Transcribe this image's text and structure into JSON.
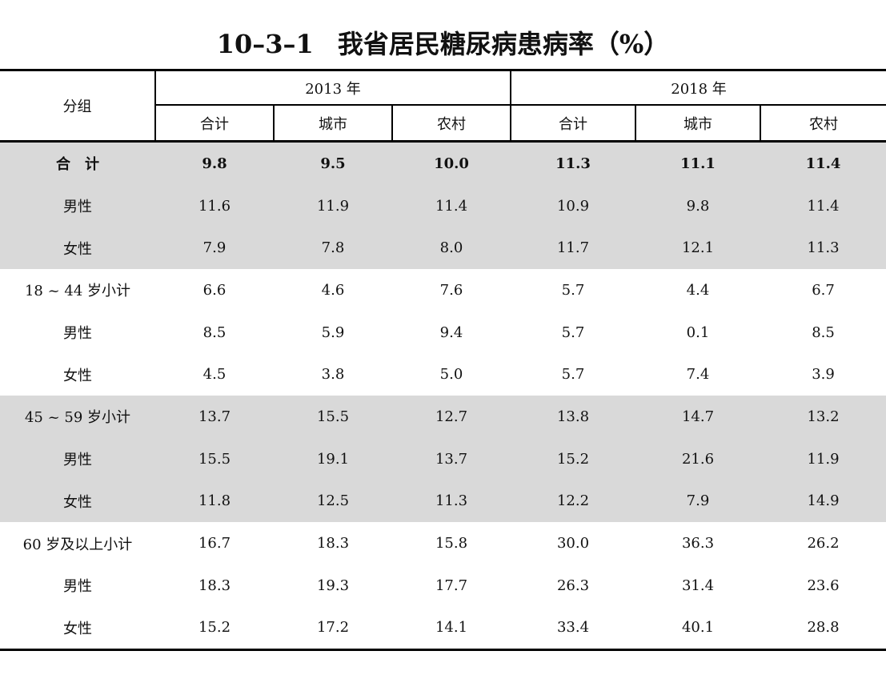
{
  "title": {
    "number": "10–3–1",
    "text": "我省居民糖尿病患病率（%）"
  },
  "header": {
    "group_label": "分组",
    "years": [
      "2013 年",
      "2018 年"
    ],
    "sub_columns": [
      "合计",
      "城市",
      "农村",
      "合计",
      "城市",
      "农村"
    ]
  },
  "rows": [
    {
      "label": "合　计",
      "values": [
        "9.8",
        "9.5",
        "10.0",
        "11.3",
        "11.1",
        "11.4"
      ]
    },
    {
      "label": "男性",
      "values": [
        "11.6",
        "11.9",
        "11.4",
        "10.9",
        "9.8",
        "11.4"
      ]
    },
    {
      "label": "女性",
      "values": [
        "7.9",
        "7.8",
        "8.0",
        "11.7",
        "12.1",
        "11.3"
      ]
    },
    {
      "label": "18 ~ 44 岁小计",
      "values": [
        "6.6",
        "4.6",
        "7.6",
        "5.7",
        "4.4",
        "6.7"
      ]
    },
    {
      "label": "男性",
      "values": [
        "8.5",
        "5.9",
        "9.4",
        "5.7",
        "0.1",
        "8.5"
      ]
    },
    {
      "label": "女性",
      "values": [
        "4.5",
        "3.8",
        "5.0",
        "5.7",
        "7.4",
        "3.9"
      ]
    },
    {
      "label": "45 ~ 59 岁小计",
      "values": [
        "13.7",
        "15.5",
        "12.7",
        "13.8",
        "14.7",
        "13.2"
      ]
    },
    {
      "label": "男性",
      "values": [
        "15.5",
        "19.1",
        "13.7",
        "15.2",
        "21.6",
        "11.9"
      ]
    },
    {
      "label": "女性",
      "values": [
        "11.8",
        "12.5",
        "11.3",
        "12.2",
        "7.9",
        "14.9"
      ]
    },
    {
      "label": "60 岁及以上小计",
      "values": [
        "16.7",
        "18.3",
        "15.8",
        "30.0",
        "36.3",
        "26.2"
      ]
    },
    {
      "label": "男性",
      "values": [
        "18.3",
        "19.3",
        "17.7",
        "26.3",
        "31.4",
        "23.6"
      ]
    },
    {
      "label": "女性",
      "values": [
        "15.2",
        "17.2",
        "14.1",
        "33.4",
        "40.1",
        "28.8"
      ]
    }
  ],
  "colors": {
    "shade": "#d9d9d9",
    "rule": "#000000"
  }
}
